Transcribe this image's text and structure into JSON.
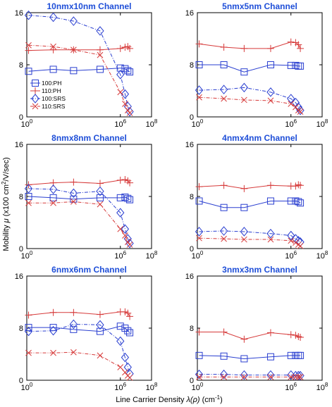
{
  "figure": {
    "ylabel_pre": "Mobility ",
    "ylabel_mu": "μ",
    "ylabel_unit_a": " (x100 cm",
    "ylabel_unit_exp": "2",
    "ylabel_unit_b": "/V/sec)",
    "xlabel_pre": "Line Carrier Density ",
    "xlabel_var": "λ(ρ)",
    "xlabel_unit_a": " (cm",
    "xlabel_unit_exp": "-1",
    "xlabel_unit_b": ")",
    "xtick_base": "10",
    "xtick_exps": [
      "0",
      "6",
      "8"
    ],
    "yticks": [
      "0",
      "8",
      "16"
    ]
  },
  "legend": {
    "entries": [
      {
        "label": "100:PH",
        "color": "#2a3fd0",
        "marker": "square",
        "dash": "solid"
      },
      {
        "label": "110:PH",
        "color": "#d63a3a",
        "marker": "plus",
        "dash": "solid"
      },
      {
        "label": "100:SRS",
        "color": "#2a3fd0",
        "marker": "diamond",
        "dash": "dashdot"
      },
      {
        "label": "110:SRS",
        "color": "#d63a3a",
        "marker": "x",
        "dash": "dashdot"
      }
    ]
  },
  "chart_data": [
    {
      "type": "line",
      "title": "10nmx10nm Channel",
      "xscale": "log",
      "xlim": [
        1,
        100000000
      ],
      "ylim": [
        0,
        16
      ],
      "series": [
        {
          "name": "100:PH",
          "x": [
            1.3,
            50,
            1000,
            50000,
            1000000,
            2000000,
            3000000,
            4000000
          ],
          "y": [
            7.0,
            7.3,
            7.1,
            7.3,
            7.5,
            7.4,
            7.1,
            6.9
          ]
        },
        {
          "name": "110:PH",
          "x": [
            1.3,
            50,
            1000,
            50000,
            1000000,
            2000000,
            3000000,
            4000000
          ],
          "y": [
            10.2,
            10.3,
            10.3,
            10.3,
            10.5,
            10.7,
            10.8,
            10.5
          ]
        },
        {
          "name": "100:SRS",
          "x": [
            1.3,
            50,
            1000,
            50000,
            1000000,
            2000000,
            3000000,
            4000000
          ],
          "y": [
            15.6,
            15.3,
            14.7,
            13.2,
            6.5,
            3.5,
            1.6,
            0.8
          ]
        },
        {
          "name": "110:SRS",
          "x": [
            1.3,
            50,
            1000,
            50000,
            1000000,
            2000000,
            3000000,
            4000000
          ],
          "y": [
            11.0,
            10.8,
            10.3,
            9.5,
            3.8,
            2.0,
            1.0,
            0.6
          ]
        }
      ]
    },
    {
      "type": "line",
      "title": "5nmx5nm Channel",
      "xscale": "log",
      "xlim": [
        1,
        100000000
      ],
      "ylim": [
        0,
        16
      ],
      "series": [
        {
          "name": "100:PH",
          "x": [
            1.3,
            50,
            1000,
            50000,
            1000000,
            2000000,
            3000000,
            4000000
          ],
          "y": [
            8.0,
            8.0,
            6.9,
            8.0,
            7.9,
            7.9,
            7.8,
            7.8
          ]
        },
        {
          "name": "110:PH",
          "x": [
            1.3,
            50,
            1000,
            50000,
            1000000,
            2000000,
            3000000,
            4000000
          ],
          "y": [
            11.2,
            10.7,
            10.5,
            10.5,
            11.5,
            11.4,
            11.1,
            10.5
          ]
        },
        {
          "name": "100:SRS",
          "x": [
            1.3,
            50,
            1000,
            50000,
            1000000,
            2000000,
            3000000,
            4000000
          ],
          "y": [
            4.1,
            4.2,
            4.5,
            3.8,
            2.8,
            2.2,
            1.5,
            1.0
          ]
        },
        {
          "name": "110:SRS",
          "x": [
            1.3,
            50,
            1000,
            50000,
            1000000,
            2000000,
            3000000,
            4000000
          ],
          "y": [
            3.0,
            2.8,
            2.6,
            2.5,
            2.0,
            1.5,
            1.0,
            0.8
          ]
        }
      ]
    },
    {
      "type": "line",
      "title": "8nmx8nm Channel",
      "xscale": "log",
      "xlim": [
        1,
        100000000
      ],
      "ylim": [
        0,
        16
      ],
      "series": [
        {
          "name": "100:PH",
          "x": [
            1.3,
            50,
            1000,
            50000,
            1000000,
            2000000,
            3000000,
            4000000
          ],
          "y": [
            8.0,
            7.8,
            7.6,
            7.8,
            7.8,
            7.9,
            7.7,
            7.5
          ]
        },
        {
          "name": "110:PH",
          "x": [
            1.3,
            50,
            1000,
            50000,
            1000000,
            2000000,
            3000000,
            4000000
          ],
          "y": [
            9.8,
            10.1,
            10.2,
            10.0,
            10.5,
            10.6,
            10.4,
            10.1
          ]
        },
        {
          "name": "100:SRS",
          "x": [
            1.3,
            50,
            1000,
            50000,
            1000000,
            2000000,
            3000000,
            4000000
          ],
          "y": [
            9.2,
            9.1,
            8.5,
            8.8,
            5.5,
            3.0,
            1.5,
            0.8
          ]
        },
        {
          "name": "110:SRS",
          "x": [
            1.3,
            50,
            1000,
            50000,
            1000000,
            2000000,
            3000000,
            4000000
          ],
          "y": [
            7.0,
            7.0,
            7.2,
            6.8,
            3.0,
            2.0,
            1.0,
            0.6
          ]
        }
      ]
    },
    {
      "type": "line",
      "title": "4nmx4nm Channel",
      "xscale": "log",
      "xlim": [
        1,
        100000000
      ],
      "ylim": [
        0,
        16
      ],
      "series": [
        {
          "name": "100:PH",
          "x": [
            1.3,
            50,
            1000,
            50000,
            1000000,
            2000000,
            3000000,
            4000000
          ],
          "y": [
            7.3,
            6.3,
            6.3,
            7.3,
            7.3,
            7.3,
            7.2,
            7.0
          ]
        },
        {
          "name": "110:PH",
          "x": [
            1.3,
            50,
            1000,
            50000,
            1000000,
            2000000,
            3000000,
            4000000
          ],
          "y": [
            9.5,
            9.7,
            9.2,
            9.7,
            9.6,
            9.6,
            9.8,
            9.7
          ]
        },
        {
          "name": "100:SRS",
          "x": [
            1.3,
            50,
            1000,
            50000,
            1000000,
            2000000,
            3000000,
            4000000
          ],
          "y": [
            2.6,
            2.7,
            2.6,
            2.3,
            2.0,
            1.5,
            1.2,
            1.0
          ]
        },
        {
          "name": "110:SRS",
          "x": [
            1.3,
            50,
            1000,
            50000,
            1000000,
            2000000,
            3000000,
            4000000
          ],
          "y": [
            1.6,
            1.5,
            1.4,
            1.4,
            1.2,
            0.9,
            0.6,
            0.4
          ]
        }
      ]
    },
    {
      "type": "line",
      "title": "6nmx6nm Channel",
      "xscale": "log",
      "xlim": [
        1,
        100000000
      ],
      "ylim": [
        0,
        16
      ],
      "series": [
        {
          "name": "100:PH",
          "x": [
            1.3,
            50,
            1000,
            50000,
            1000000,
            2000000,
            3000000,
            4000000
          ],
          "y": [
            8.1,
            8.1,
            7.8,
            7.5,
            8.3,
            8.0,
            7.6,
            7.3
          ]
        },
        {
          "name": "110:PH",
          "x": [
            1.3,
            50,
            1000,
            50000,
            1000000,
            2000000,
            3000000,
            4000000
          ],
          "y": [
            10.0,
            10.4,
            10.4,
            10.1,
            10.5,
            10.5,
            10.3,
            9.8
          ]
        },
        {
          "name": "100:SRS",
          "x": [
            1.3,
            50,
            1000,
            50000,
            1000000,
            2000000,
            3000000,
            4000000
          ],
          "y": [
            7.5,
            7.6,
            8.6,
            8.5,
            6.0,
            3.5,
            2.0,
            1.0
          ]
        },
        {
          "name": "110:SRS",
          "x": [
            1.3,
            50,
            1000,
            50000,
            1000000,
            2000000,
            3000000,
            4000000
          ],
          "y": [
            4.2,
            4.2,
            4.3,
            3.8,
            2.0,
            1.2,
            0.7,
            0.4
          ]
        }
      ]
    },
    {
      "type": "line",
      "title": "3nmx3nm Channel",
      "xscale": "log",
      "xlim": [
        1,
        100000000
      ],
      "ylim": [
        0,
        16
      ],
      "series": [
        {
          "name": "100:PH",
          "x": [
            1.3,
            50,
            1000,
            50000,
            1000000,
            2000000,
            3000000,
            4000000
          ],
          "y": [
            3.8,
            3.7,
            3.3,
            3.6,
            3.8,
            3.8,
            3.8,
            3.8
          ]
        },
        {
          "name": "110:PH",
          "x": [
            1.3,
            50,
            1000,
            50000,
            1000000,
            2000000,
            3000000,
            4000000
          ],
          "y": [
            7.4,
            7.4,
            6.3,
            7.3,
            7.0,
            6.9,
            6.7,
            6.6
          ]
        },
        {
          "name": "100:SRS",
          "x": [
            1.3,
            50,
            1000,
            50000,
            1000000,
            2000000,
            3000000,
            4000000
          ],
          "y": [
            0.9,
            0.9,
            0.8,
            0.8,
            0.8,
            0.7,
            0.7,
            0.7
          ]
        },
        {
          "name": "110:SRS",
          "x": [
            1.3,
            50,
            1000,
            50000,
            1000000,
            2000000,
            3000000,
            4000000
          ],
          "y": [
            0.5,
            0.5,
            0.5,
            0.5,
            0.5,
            0.5,
            0.5,
            0.5
          ]
        }
      ]
    }
  ]
}
